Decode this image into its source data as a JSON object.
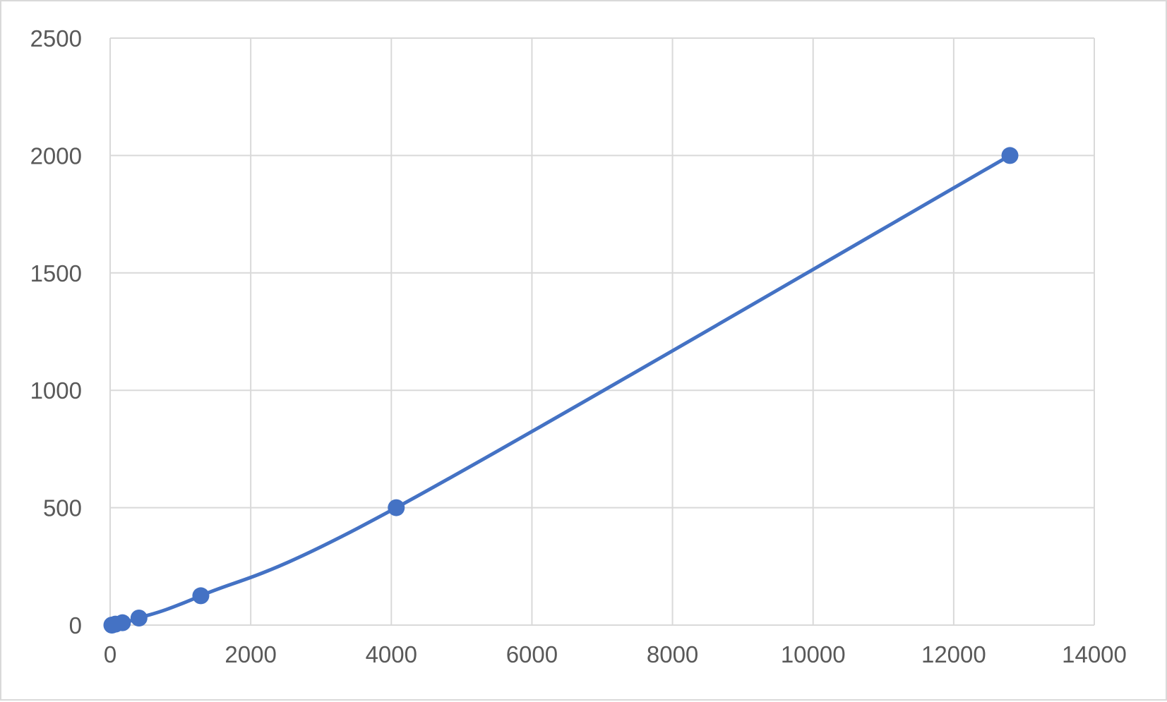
{
  "chart_data": {
    "type": "scatter",
    "title": "",
    "xlabel": "",
    "ylabel": "",
    "xlim": [
      0,
      14000
    ],
    "ylim": [
      0,
      2500
    ],
    "x_ticks": [
      "0",
      "2000",
      "4000",
      "6000",
      "8000",
      "10000",
      "12000",
      "14000"
    ],
    "y_ticks": [
      "0",
      "500",
      "1000",
      "1500",
      "2000",
      "2500"
    ],
    "grid": true,
    "legend": "none",
    "smooth_line": true,
    "series": [
      {
        "color": "#4472c4",
        "points": [
          {
            "x": 25,
            "y": 0
          },
          {
            "x": 75,
            "y": 4
          },
          {
            "x": 175,
            "y": 10
          },
          {
            "x": 410,
            "y": 30
          },
          {
            "x": 1290,
            "y": 125
          },
          {
            "x": 4070,
            "y": 500
          },
          {
            "x": 12800,
            "y": 2000
          }
        ]
      }
    ]
  }
}
